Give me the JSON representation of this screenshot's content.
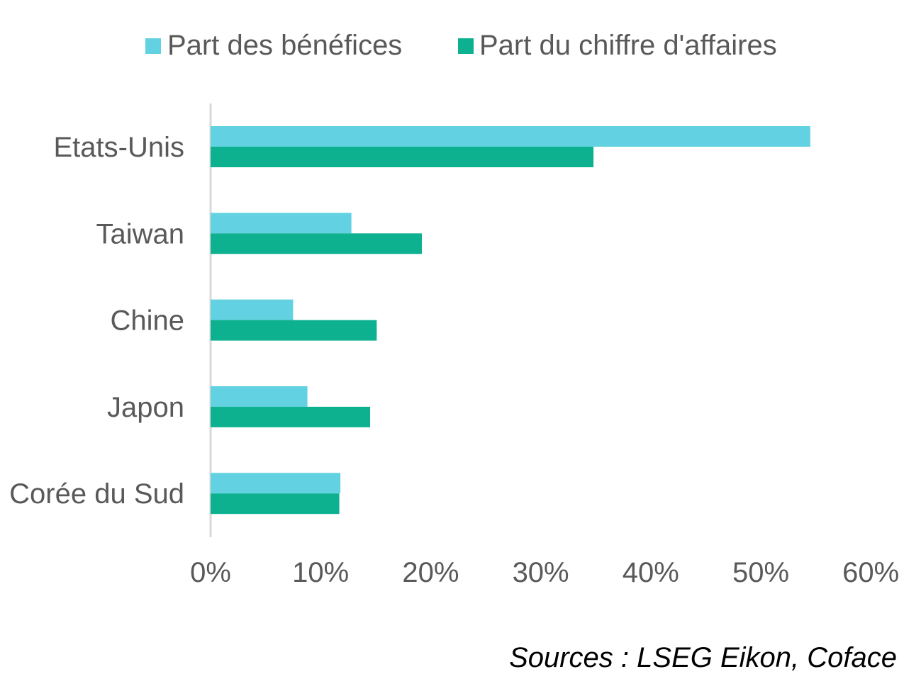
{
  "chart_data": {
    "type": "bar",
    "orientation": "horizontal",
    "categories": [
      "Etats-Unis",
      "Taiwan",
      "Chine",
      "Japon",
      "Corée du Sud"
    ],
    "series": [
      {
        "name": "Part des bénéfices",
        "color": "#62D2E2",
        "values": [
          54.5,
          12.8,
          7.5,
          8.8,
          11.8
        ]
      },
      {
        "name": "Part du chiffre d'affaires",
        "color": "#0DB190",
        "values": [
          34.8,
          19.2,
          15.1,
          14.5,
          11.7
        ]
      }
    ],
    "xlim": [
      0,
      60
    ],
    "xticks": [
      0,
      10,
      20,
      30,
      40,
      50,
      60
    ],
    "xtick_labels": [
      "0%",
      "10%",
      "20%",
      "30%",
      "40%",
      "50%",
      "60%"
    ],
    "legend_position": "top",
    "grid": false
  },
  "source_note": "Sources : LSEG Eikon, Coface"
}
